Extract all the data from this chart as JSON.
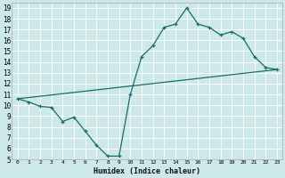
{
  "xlabel": "Humidex (Indice chaleur)",
  "bg_color": "#cce8e8",
  "grid_color": "#ffffff",
  "line_color": "#1a6b6b",
  "xlim": [
    -0.5,
    23.5
  ],
  "ylim": [
    5,
    19.5
  ],
  "xticks": [
    0,
    1,
    2,
    3,
    4,
    5,
    6,
    7,
    8,
    9,
    10,
    11,
    12,
    13,
    14,
    15,
    16,
    17,
    18,
    19,
    20,
    21,
    22,
    23
  ],
  "yticks": [
    5,
    6,
    7,
    8,
    9,
    10,
    11,
    12,
    13,
    14,
    15,
    16,
    17,
    18,
    19
  ],
  "curve1_x": [
    0,
    1,
    2,
    3,
    4,
    5,
    6,
    7,
    8,
    9,
    10,
    11,
    12,
    13,
    14,
    15,
    16,
    17,
    18,
    19,
    20,
    21,
    22,
    23
  ],
  "curve1_y": [
    10.6,
    10.3,
    9.9,
    9.8,
    8.5,
    8.9,
    7.6,
    6.3,
    5.3,
    5.3,
    11.0,
    14.5,
    15.5,
    17.2,
    17.5,
    19.0,
    17.5,
    17.2,
    16.5,
    16.8,
    16.2,
    14.5,
    13.5,
    13.3
  ],
  "curve2_x": [
    0,
    23
  ],
  "curve2_y": [
    10.6,
    13.3
  ]
}
